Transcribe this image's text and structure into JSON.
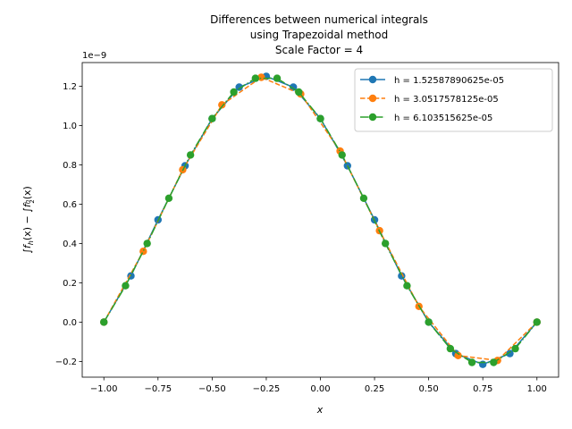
{
  "chart_data": {
    "type": "line",
    "title_lines": [
      "Differences between numerical integrals",
      "using Trapezoidal method",
      "Scale Factor = 4"
    ],
    "xlabel": "x",
    "ylabel": "∫f_h(x) − ∫f_{h/2}(x)",
    "ylabel_parts": {
      "int1": "∫",
      "f": "f",
      "h": "h",
      "x": "(x) − ",
      "int2": "∫",
      "f2": "f",
      "frac_num": "h",
      "frac_den": "2",
      "x2": "(x)"
    },
    "y_offset_text": "1e−9",
    "xlim": [
      -1.1,
      1.1
    ],
    "ylim": [
      -0.28,
      1.32
    ],
    "x_ticks": [
      -1.0,
      -0.75,
      -0.5,
      -0.25,
      0.0,
      0.25,
      0.5,
      0.75,
      1.0
    ],
    "x_tick_labels": [
      "−1.00",
      "−0.75",
      "−0.50",
      "−0.25",
      "0.00",
      "0.25",
      "0.50",
      "0.75",
      "1.00"
    ],
    "y_ticks": [
      -0.2,
      0.0,
      0.2,
      0.4,
      0.6,
      0.8,
      1.0,
      1.2
    ],
    "y_tick_labels": [
      "−0.2",
      "0.0",
      "0.2",
      "0.4",
      "0.6",
      "0.8",
      "1.0",
      "1.2"
    ],
    "legend_position": "upper-right",
    "grid": false,
    "series": [
      {
        "name": "h = 1.52587890625e-05",
        "color": "#1f77b4",
        "linestyle": "solid",
        "x": [
          -1.0,
          -0.875,
          -0.75,
          -0.625,
          -0.5,
          -0.375,
          -0.25,
          -0.125,
          0.0,
          0.125,
          0.25,
          0.375,
          0.5,
          0.625,
          0.75,
          0.875,
          1.0
        ],
        "y": [
          0.0,
          0.235,
          0.52,
          0.795,
          1.035,
          1.195,
          1.25,
          1.195,
          1.035,
          0.795,
          0.52,
          0.235,
          0.0,
          -0.16,
          -0.215,
          -0.16,
          0.0
        ]
      },
      {
        "name": "h = 3.0517578125e-05",
        "color": "#ff7f0e",
        "linestyle": "dashed",
        "x": [
          -1.0,
          -0.818,
          -0.636,
          -0.455,
          -0.273,
          -0.091,
          0.091,
          0.273,
          0.455,
          0.636,
          0.818,
          1.0
        ],
        "y": [
          0.0,
          0.36,
          0.775,
          1.105,
          1.245,
          1.16,
          0.87,
          0.465,
          0.08,
          -0.17,
          -0.195,
          0.0
        ]
      },
      {
        "name": "h = 6.103515625e-05",
        "color": "#2ca02c",
        "linestyle": "dashdot",
        "x": [
          -1.0,
          -0.9,
          -0.8,
          -0.7,
          -0.6,
          -0.5,
          -0.4,
          -0.3,
          -0.2,
          -0.1,
          0.0,
          0.1,
          0.2,
          0.3,
          0.4,
          0.5,
          0.6,
          0.7,
          0.8,
          0.9,
          1.0
        ],
        "y": [
          0.0,
          0.185,
          0.4,
          0.63,
          0.85,
          1.035,
          1.17,
          1.24,
          1.24,
          1.17,
          1.035,
          0.85,
          0.63,
          0.4,
          0.185,
          0.0,
          -0.135,
          -0.205,
          -0.205,
          -0.135,
          0.0
        ]
      }
    ]
  }
}
